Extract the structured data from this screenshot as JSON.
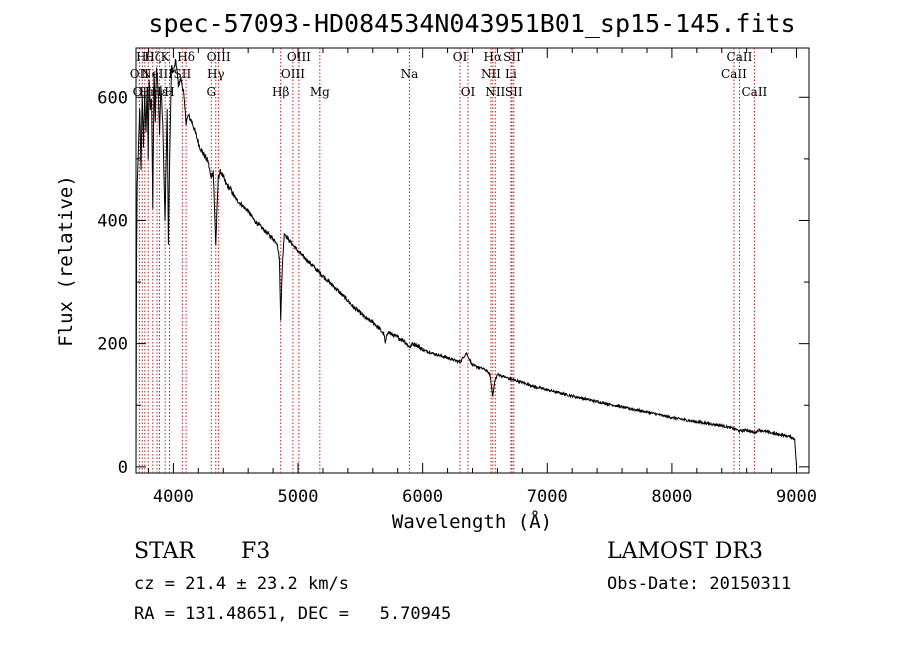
{
  "chart_data": {
    "type": "line",
    "title": "spec-57093-HD084534N043951B01_sp15-145.fits",
    "xlabel": "Wavelength (Å)",
    "ylabel": "Flux (relative)",
    "xlim": [
      3700,
      9100
    ],
    "ylim": [
      -10,
      680
    ],
    "xticks": [
      4000,
      5000,
      6000,
      7000,
      8000,
      9000
    ],
    "yticks": [
      0,
      200,
      400,
      600
    ],
    "series": [
      {
        "name": "flux",
        "x": [
          3700,
          3705,
          3710,
          3720,
          3730,
          3740,
          3750,
          3760,
          3770,
          3780,
          3790,
          3798,
          3805,
          3815,
          3825,
          3835,
          3845,
          3855,
          3865,
          3880,
          3889,
          3900,
          3915,
          3933,
          3950,
          3960,
          3970,
          3985,
          4000,
          4020,
          4040,
          4060,
          4080,
          4102,
          4120,
          4150,
          4180,
          4210,
          4250,
          4280,
          4300,
          4320,
          4340,
          4360,
          4380,
          4420,
          4460,
          4500,
          4550,
          4600,
          4650,
          4700,
          4750,
          4800,
          4830,
          4850,
          4861,
          4875,
          4890,
          4920,
          4960,
          5000,
          5050,
          5100,
          5150,
          5200,
          5250,
          5300,
          5350,
          5400,
          5450,
          5500,
          5550,
          5600,
          5650,
          5690,
          5700,
          5720,
          5750,
          5800,
          5850,
          5890,
          5900,
          5920,
          5950,
          6000,
          6100,
          6200,
          6300,
          6350,
          6400,
          6500,
          6540,
          6563,
          6580,
          6600,
          6700,
          6800,
          6900,
          7000,
          7200,
          7400,
          7600,
          7800,
          8000,
          8200,
          8400,
          8500,
          8542,
          8600,
          8662,
          8700,
          8800,
          8900,
          8950,
          8985,
          9000
        ],
        "y": [
          0,
          350,
          460,
          520,
          580,
          480,
          600,
          520,
          610,
          540,
          620,
          500,
          630,
          580,
          600,
          420,
          640,
          560,
          650,
          600,
          540,
          620,
          560,
          400,
          580,
          360,
          500,
          650,
          640,
          660,
          620,
          630,
          610,
          560,
          570,
          560,
          540,
          520,
          505,
          495,
          470,
          480,
          360,
          470,
          480,
          460,
          450,
          435,
          425,
          415,
          400,
          390,
          380,
          370,
          365,
          340,
          240,
          330,
          380,
          370,
          360,
          350,
          340,
          330,
          320,
          310,
          300,
          290,
          280,
          270,
          258,
          250,
          240,
          235,
          225,
          215,
          200,
          220,
          215,
          210,
          205,
          195,
          195,
          200,
          198,
          190,
          183,
          177,
          170,
          185,
          165,
          158,
          150,
          115,
          140,
          150,
          143,
          137,
          130,
          125,
          115,
          106,
          97,
          89,
          80,
          73,
          67,
          62,
          58,
          60,
          55,
          60,
          55,
          51,
          49,
          45,
          0
        ]
      }
    ],
    "lines": [
      {
        "w": 3727,
        "label": "OII",
        "row": 1
      },
      {
        "w": 3750,
        "label": "OII",
        "row": 2
      },
      {
        "w": 3771,
        "label": "Hθ",
        "row": 0
      },
      {
        "w": 3798,
        "label": "Hη",
        "row": 2
      },
      {
        "w": 3835,
        "label": "Hζ",
        "row": 0
      },
      {
        "w": 3869,
        "label": "NeIII",
        "row": 1
      },
      {
        "w": 3889,
        "label": "Hε",
        "row": 2
      },
      {
        "w": 3934,
        "label": "K",
        "row": 0
      },
      {
        "w": 3969,
        "label": "H",
        "row": 2
      },
      {
        "w": 4072,
        "label": "SII",
        "row": 1
      },
      {
        "w": 4102,
        "label": "Hδ",
        "row": 0
      },
      {
        "w": 4304,
        "label": "G",
        "row": 2
      },
      {
        "w": 4340,
        "label": "Hγ",
        "row": 1
      },
      {
        "w": 4363,
        "label": "OIII",
        "row": 0
      },
      {
        "w": 4861,
        "label": "Hβ",
        "row": 2
      },
      {
        "w": 4959,
        "label": "OIII",
        "row": 1
      },
      {
        "w": 5007,
        "label": "OIII",
        "row": 0
      },
      {
        "w": 5175,
        "label": "Mg",
        "row": 2
      },
      {
        "w": 5894,
        "label": "Na",
        "row": 1
      },
      {
        "w": 6300,
        "label": "OI",
        "row": 0
      },
      {
        "w": 6364,
        "label": "OI",
        "row": 2
      },
      {
        "w": 6548,
        "label": "NII",
        "row": 1
      },
      {
        "w": 6563,
        "label": "Hα",
        "row": 0
      },
      {
        "w": 6583,
        "label": "NII",
        "row": 2
      },
      {
        "w": 6708,
        "label": "Li",
        "row": 1
      },
      {
        "w": 6717,
        "label": "SII",
        "row": 0
      },
      {
        "w": 6731,
        "label": "SII",
        "row": 2
      },
      {
        "w": 8498,
        "label": "CaII",
        "row": 1
      },
      {
        "w": 8542,
        "label": "CaII",
        "row": 0
      },
      {
        "w": 8662,
        "label": "CaII",
        "row": 2
      }
    ]
  },
  "info": {
    "object_class": "STAR",
    "subclass": "F3",
    "survey": "LAMOST DR3",
    "redshift_text": "cz = 21.4 ± 23.2 km/s",
    "obs_date_text": "Obs-Date: 20150311",
    "coords_text": "RA = 131.48651, DEC =   5.70945"
  },
  "colors": {
    "line_marker": "#b22222",
    "spectrum": "#000000"
  }
}
